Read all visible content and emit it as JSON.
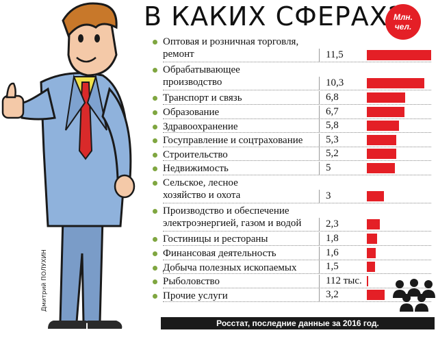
{
  "credit": "Дмитрий ПОЛУХИН",
  "unit_badge": {
    "line1": "Млн.",
    "line2": "чел."
  },
  "footer": "Росстат, последние данные за 2016 год.",
  "colors": {
    "bar": "#e41f26",
    "bullet": "#7fa640",
    "footer_bg": "#1a1a1a"
  },
  "chart_data": {
    "type": "bar",
    "orientation": "horizontal",
    "title": "В КАКИХ СФЕРАХ?",
    "unit": "Млн. чел.",
    "categories": [
      "Оптовая и розничная торговля,\nремонт",
      "Обрабатывающее\nпроизводство",
      "Транспорт и связь",
      "Образование",
      "Здравоохранение",
      "Госуправление и соцтрахование",
      "Строительство",
      "Недвижимость",
      "Сельское, лесное\nхозяйство и охота",
      "Производство и обеспечение\nэлектроэнергией, газом и водой",
      "Гостиницы и рестораны",
      "Финансовая деятельность",
      "Добыча полезных ископаемых",
      "Рыболовство",
      "Прочие услуги"
    ],
    "values": [
      11.5,
      10.3,
      6.8,
      6.7,
      5.8,
      5.3,
      5.2,
      5,
      3,
      2.3,
      1.8,
      1.6,
      1.5,
      0.112,
      3.2
    ],
    "value_labels": [
      "11,5",
      "10,3",
      "6,8",
      "6,7",
      "5,8",
      "5,3",
      "5,2",
      "5",
      "3",
      "2,3",
      "1,8",
      "1,6",
      "1,5",
      "112 тыс.",
      "3,2"
    ],
    "source": "Росстат, последние данные за 2016 год."
  }
}
